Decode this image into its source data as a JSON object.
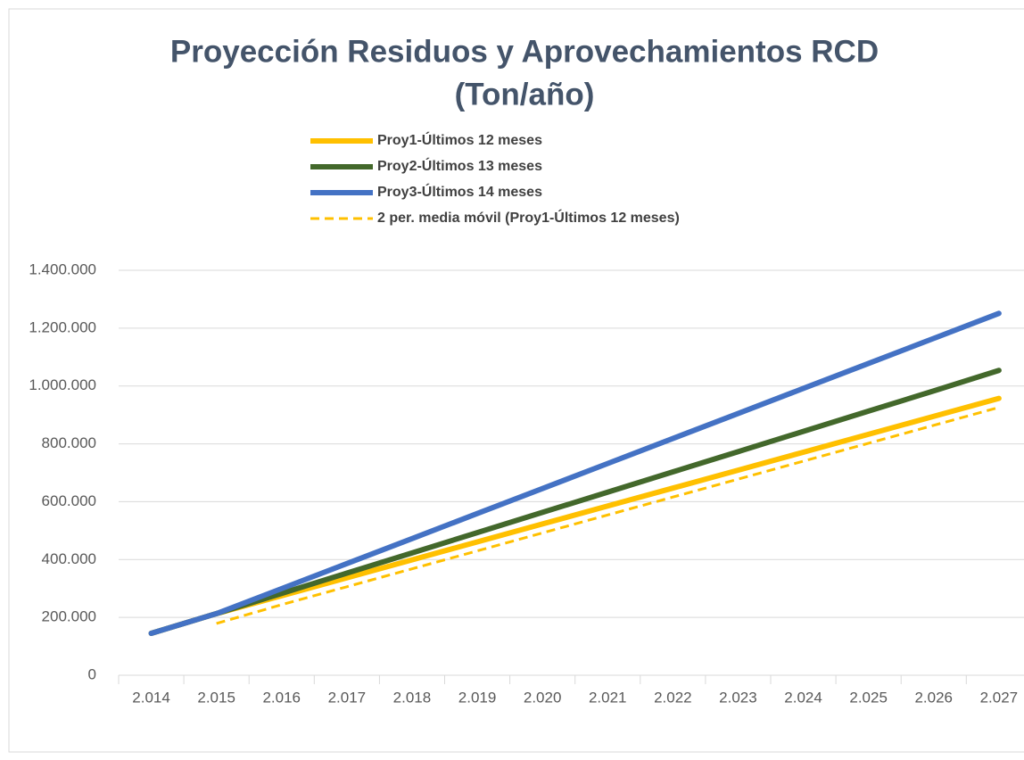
{
  "chart_data": {
    "type": "line",
    "title": [
      "Proyección Residuos y Aprovechamientos RCD",
      "(Ton/año)"
    ],
    "categories": [
      "2.014",
      "2.015",
      "2.016",
      "2.017",
      "2.018",
      "2.019",
      "2.020",
      "2.021",
      "2.022",
      "2.023",
      "2.024",
      "2.025",
      "2.026",
      "2.027"
    ],
    "series": [
      {
        "name": "Proy1-Últimos 12 meses",
        "color": "#FFC000",
        "dashed": false,
        "values": [
          145000,
          213000,
          275000,
          337000,
          399000,
          461000,
          523000,
          585000,
          647000,
          709000,
          771000,
          833000,
          895000,
          957000
        ]
      },
      {
        "name": "Proy2-Últimos 13 meses",
        "color": "#43682B",
        "dashed": false,
        "values": [
          145000,
          213000,
          283000,
          353000,
          423000,
          493000,
          563000,
          633000,
          703000,
          773000,
          843000,
          913000,
          983000,
          1054000
        ]
      },
      {
        "name": "Proy3-Últimos 14 meses",
        "color": "#4472C4",
        "dashed": false,
        "values": [
          145000,
          213000,
          299500,
          386000,
          472500,
          559000,
          645500,
          732000,
          818500,
          905000,
          991500,
          1078000,
          1164500,
          1251000
        ]
      },
      {
        "name": "2 per. media móvil (Proy1-Últimos 12 meses)",
        "color": "#FFC000",
        "dashed": true,
        "values": [
          null,
          179000,
          244000,
          306000,
          368000,
          430000,
          492000,
          554000,
          616000,
          678000,
          740000,
          802000,
          864000,
          926000
        ]
      }
    ],
    "ylim": [
      0,
      1400000
    ],
    "yticks": [
      0,
      {
        "value": 200000,
        "label": "200.000"
      },
      {
        "value": 400000,
        "label": "400.000"
      },
      {
        "value": 600000,
        "label": "600.000"
      },
      {
        "value": 800000,
        "label": "800.000"
      },
      {
        "value": 1000000,
        "label": "1.000.000"
      },
      {
        "value": 1200000,
        "label": "1.200.000"
      },
      {
        "value": 1400000,
        "label": "1.400.000"
      }
    ],
    "grid": true,
    "legend": "top"
  }
}
